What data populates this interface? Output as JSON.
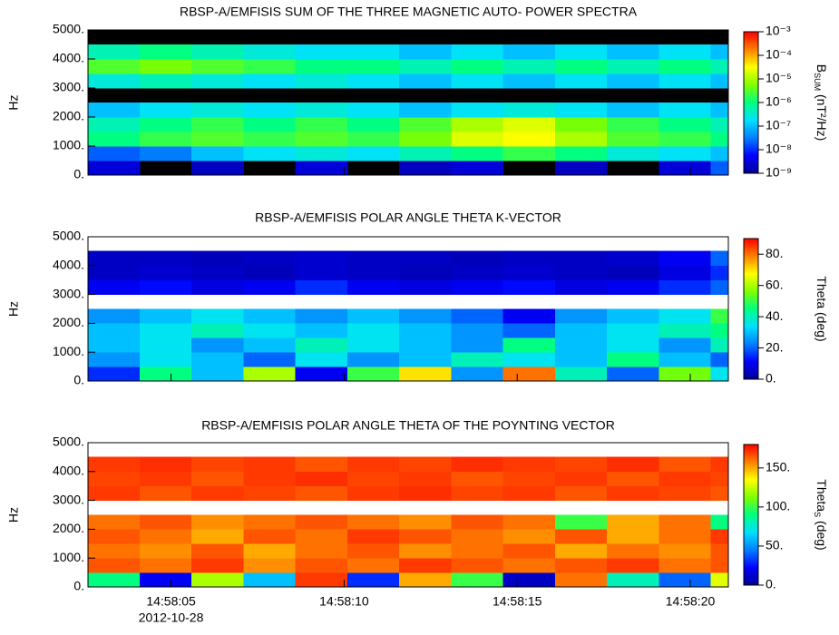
{
  "chart_data": [
    {
      "type": "heatmap",
      "title": "RBSP-A/EMFISIS  SUM OF THE THREE MAGNETIC AUTO- POWER SPECTRA",
      "ylabel": "Hz",
      "colorbar_label": [
        {
          "text": "B"
        },
        {
          "text": "SUM",
          "sub": true
        },
        {
          "text": " (nT²/Hz)"
        }
      ],
      "xlim": [
        2.6,
        21.1
      ],
      "xticks": [
        5,
        10,
        15,
        20
      ],
      "ylim": [
        0,
        5000
      ],
      "yticks": [
        {
          "value": 0,
          "label": "0."
        },
        {
          "value": 1000,
          "label": "1000."
        },
        {
          "value": 2000,
          "label": "2000."
        },
        {
          "value": 3000,
          "label": "3000."
        },
        {
          "value": 4000,
          "label": "4000."
        },
        {
          "value": 5000,
          "label": "5000."
        }
      ],
      "zlim": [
        1e-09,
        0.001
      ],
      "zscale": "log",
      "zticks": [
        {
          "value": 0.001,
          "label": "10⁻³"
        },
        {
          "value": 0.0001,
          "label": "10⁻⁴"
        },
        {
          "value": 1e-05,
          "label": "10⁻⁵"
        },
        {
          "value": 1e-06,
          "label": "10⁻⁶"
        },
        {
          "value": 1e-07,
          "label": "10⁻⁷"
        },
        {
          "value": 1e-08,
          "label": "10⁻⁸"
        },
        {
          "value": 1e-09,
          "label": "10⁻⁹"
        }
      ],
      "colormap": [
        "#000096",
        "#0000ff",
        "#0080ff",
        "#00e0ff",
        "#00ff80",
        "#80ff00",
        "#ffff00",
        "#ff8000",
        "#ff0000"
      ],
      "null_color": "#000000",
      "x_bins": [
        2.6,
        4.1,
        5.6,
        7.1,
        8.6,
        10.1,
        11.6,
        13.1,
        14.6,
        16.1,
        17.6,
        19.1,
        20.6,
        21.1
      ],
      "y_bins": [
        0,
        500,
        1000,
        1500,
        2000,
        2500,
        3000,
        3500,
        4000,
        4500,
        5000
      ],
      "z": [
        [
          3e-09,
          null,
          2e-09,
          null,
          3e-09,
          null,
          2e-09,
          3e-09,
          null,
          2e-09,
          null,
          3e-09,
          2e-08
        ],
        [
          2e-08,
          3e-08,
          1e-07,
          2e-07,
          3e-07,
          2e-07,
          5e-07,
          1e-06,
          2e-06,
          1e-06,
          3e-07,
          2e-07,
          1e-07
        ],
        [
          1e-06,
          2e-06,
          3e-06,
          2e-06,
          3e-06,
          2e-06,
          5e-06,
          2e-05,
          3e-05,
          1e-05,
          3e-06,
          2e-06,
          1e-06
        ],
        [
          5e-07,
          1e-06,
          2e-06,
          1e-06,
          2e-06,
          1e-06,
          3e-06,
          1e-05,
          2e-05,
          5e-06,
          2e-06,
          1e-06,
          5e-07
        ],
        [
          1e-07,
          2e-07,
          3e-07,
          2e-07,
          3e-07,
          2e-07,
          1e-07,
          2e-07,
          3e-07,
          2e-07,
          1e-07,
          2e-07,
          1e-07
        ],
        [
          null,
          null,
          null,
          null,
          null,
          null,
          null,
          null,
          null,
          null,
          null,
          null,
          null
        ],
        [
          3e-07,
          5e-07,
          3e-07,
          2e-07,
          3e-07,
          2e-07,
          1e-07,
          2e-07,
          1e-07,
          2e-07,
          1e-07,
          2e-07,
          1e-07
        ],
        [
          3e-06,
          5e-06,
          3e-06,
          2e-06,
          1e-06,
          1e-06,
          5e-07,
          1e-06,
          5e-07,
          1e-06,
          5e-07,
          1e-06,
          5e-07
        ],
        [
          5e-07,
          1e-06,
          5e-07,
          3e-07,
          2e-07,
          2e-07,
          1e-07,
          2e-07,
          1e-07,
          2e-07,
          1e-07,
          2e-07,
          1e-07
        ],
        [
          null,
          null,
          null,
          null,
          null,
          null,
          null,
          null,
          null,
          null,
          null,
          null,
          null
        ]
      ]
    },
    {
      "type": "heatmap",
      "title": "RBSP-A/EMFISIS  POLAR ANGLE THETA K-VECTOR",
      "ylabel": "Hz",
      "colorbar_label": [
        {
          "text": "Theta (deg)"
        }
      ],
      "xlim": [
        2.6,
        21.1
      ],
      "xticks": [
        5,
        10,
        15,
        20
      ],
      "ylim": [
        0,
        5000
      ],
      "yticks": [
        {
          "value": 0,
          "label": "0."
        },
        {
          "value": 1000,
          "label": "1000."
        },
        {
          "value": 2000,
          "label": "2000."
        },
        {
          "value": 3000,
          "label": "3000."
        },
        {
          "value": 4000,
          "label": "4000."
        },
        {
          "value": 5000,
          "label": "5000."
        }
      ],
      "zlim": [
        0,
        90
      ],
      "zscale": "linear",
      "zticks": [
        {
          "value": 0,
          "label": "0."
        },
        {
          "value": 20,
          "label": "20."
        },
        {
          "value": 40,
          "label": "40."
        },
        {
          "value": 60,
          "label": "60."
        },
        {
          "value": 80,
          "label": "80."
        }
      ],
      "colormap": [
        "#000096",
        "#0000ff",
        "#0080ff",
        "#00e0ff",
        "#00ff80",
        "#80ff00",
        "#ffff00",
        "#ff8000",
        "#ff0000"
      ],
      "null_color": "#ffffff",
      "x_bins": [
        2.6,
        4.1,
        5.6,
        7.1,
        8.6,
        10.1,
        11.6,
        13.1,
        14.6,
        16.1,
        17.6,
        19.1,
        20.6,
        21.1
      ],
      "y_bins": [
        0,
        500,
        1000,
        1500,
        2000,
        2500,
        3000,
        3500,
        4000,
        4500,
        5000
      ],
      "z": [
        [
          15,
          45,
          30,
          60,
          10,
          50,
          70,
          25,
          80,
          40,
          20,
          55,
          35
        ],
        [
          25,
          35,
          30,
          20,
          35,
          25,
          30,
          40,
          35,
          30,
          45,
          30,
          20
        ],
        [
          30,
          35,
          25,
          30,
          40,
          35,
          30,
          25,
          45,
          30,
          35,
          25,
          40
        ],
        [
          30,
          35,
          40,
          35,
          30,
          35,
          30,
          25,
          20,
          30,
          35,
          40,
          45
        ],
        [
          25,
          30,
          35,
          30,
          25,
          30,
          25,
          20,
          10,
          25,
          30,
          35,
          50
        ],
        [
          null,
          null,
          null,
          null,
          null,
          null,
          null,
          null,
          null,
          null,
          null,
          null,
          null
        ],
        [
          10,
          12,
          8,
          10,
          15,
          10,
          8,
          10,
          12,
          8,
          10,
          15,
          20
        ],
        [
          5,
          6,
          5,
          4,
          6,
          5,
          4,
          5,
          6,
          5,
          4,
          8,
          15
        ],
        [
          5,
          5,
          4,
          5,
          6,
          5,
          5,
          4,
          5,
          5,
          6,
          10,
          20
        ],
        [
          null,
          null,
          null,
          null,
          null,
          null,
          null,
          null,
          null,
          null,
          null,
          null,
          null
        ]
      ]
    },
    {
      "type": "heatmap",
      "title": "RBSP-A/EMFISIS  POLAR ANGLE THETA OF THE POYNTING VECTOR",
      "ylabel": "Hz",
      "colorbar_label": [
        {
          "text": "Theta"
        },
        {
          "text": "S",
          "sub": true
        },
        {
          "text": " (deg)"
        }
      ],
      "xlim": [
        2.6,
        21.1
      ],
      "xticks": [
        {
          "value": 5,
          "label": "14:58:05"
        },
        {
          "value": 10,
          "label": "14:58:10"
        },
        {
          "value": 15,
          "label": "14:58:15"
        },
        {
          "value": 20,
          "label": "14:58:20"
        }
      ],
      "x_date": "2012-10-28",
      "ylim": [
        0,
        5000
      ],
      "yticks": [
        {
          "value": 0,
          "label": "0."
        },
        {
          "value": 1000,
          "label": "1000."
        },
        {
          "value": 2000,
          "label": "2000."
        },
        {
          "value": 3000,
          "label": "3000."
        },
        {
          "value": 4000,
          "label": "4000."
        },
        {
          "value": 5000,
          "label": "5000."
        }
      ],
      "zlim": [
        0,
        180
      ],
      "zscale": "linear",
      "zticks": [
        {
          "value": 0,
          "label": "0."
        },
        {
          "value": 50,
          "label": "50."
        },
        {
          "value": 100,
          "label": "100."
        },
        {
          "value": 150,
          "label": "150."
        }
      ],
      "colormap": [
        "#000096",
        "#0000ff",
        "#0080ff",
        "#00e0ff",
        "#00ff80",
        "#80ff00",
        "#ffff00",
        "#ff8000",
        "#ff0000"
      ],
      "null_color": "#ffffff",
      "x_bins": [
        2.6,
        4.1,
        5.6,
        7.1,
        8.6,
        10.1,
        11.6,
        13.1,
        14.6,
        16.1,
        17.6,
        19.1,
        20.6,
        21.1
      ],
      "y_bins": [
        0,
        500,
        1000,
        1500,
        2000,
        2500,
        3000,
        3500,
        4000,
        4500,
        5000
      ],
      "z": [
        [
          90,
          20,
          120,
          60,
          170,
          30,
          150,
          100,
          10,
          160,
          80,
          40,
          130
        ],
        [
          165,
          160,
          170,
          155,
          165,
          160,
          170,
          165,
          160,
          165,
          170,
          160,
          165
        ],
        [
          160,
          155,
          165,
          150,
          160,
          165,
          155,
          160,
          165,
          150,
          160,
          155,
          165
        ],
        [
          165,
          160,
          150,
          165,
          160,
          170,
          165,
          160,
          155,
          165,
          150,
          160,
          170
        ],
        [
          160,
          165,
          155,
          160,
          165,
          160,
          155,
          165,
          160,
          100,
          150,
          160,
          90
        ],
        [
          null,
          null,
          null,
          null,
          null,
          null,
          null,
          null,
          null,
          null,
          null,
          null,
          null
        ],
        [
          170,
          165,
          170,
          168,
          165,
          170,
          172,
          168,
          170,
          165,
          170,
          168,
          165
        ],
        [
          168,
          170,
          165,
          170,
          172,
          168,
          170,
          165,
          168,
          170,
          165,
          170,
          168
        ],
        [
          170,
          172,
          168,
          170,
          165,
          170,
          168,
          172,
          170,
          168,
          172,
          165,
          170
        ],
        [
          null,
          null,
          null,
          null,
          null,
          null,
          null,
          null,
          null,
          null,
          null,
          null,
          null
        ]
      ]
    }
  ]
}
